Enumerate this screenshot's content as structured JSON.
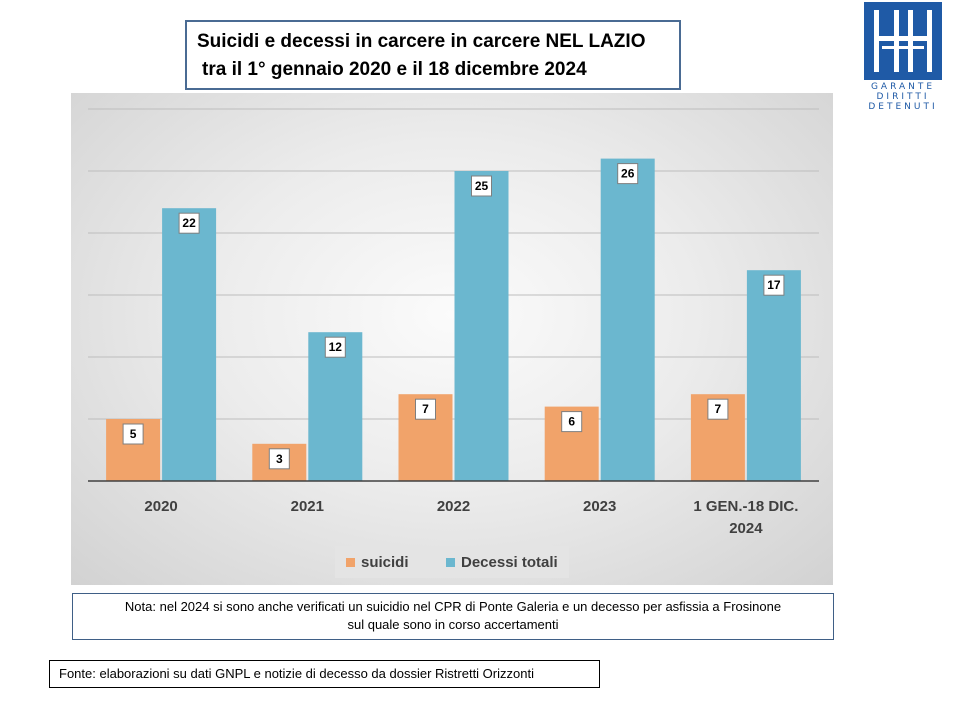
{
  "title": {
    "line1": "Suicidi e decessi in carcere in carcere NEL LAZIO",
    "line2": "tra il 1° gennaio 2020 e il 18 dicembre 2024"
  },
  "logo": {
    "lines": [
      "GARANTE",
      "DIRITTI",
      "DETENUTI"
    ],
    "color": "#1f5aa6"
  },
  "chart_data": {
    "type": "bar",
    "categories": [
      "2020",
      "2021",
      "2022",
      "2023",
      "1 GEN.-18 DIC. 2024"
    ],
    "category_lines": [
      [
        "2020"
      ],
      [
        "2021"
      ],
      [
        "2022"
      ],
      [
        "2023"
      ],
      [
        "1 GEN.-18 DIC.",
        "2024"
      ]
    ],
    "series": [
      {
        "name": "suicidi",
        "values": [
          5,
          3,
          7,
          6,
          7
        ],
        "color": "#f1a36a"
      },
      {
        "name": "Decessi totali",
        "values": [
          22,
          12,
          25,
          26,
          17
        ],
        "color": "#6bb7cf"
      }
    ],
    "ylim": [
      0,
      30
    ],
    "gridlines": true,
    "legend": "bottom-center",
    "data_labels": true
  },
  "note": {
    "line1": "Nota: nel 2024 si sono anche verificati un suicidio nel CPR di Ponte Galeria e un decesso per asfissia a Frosinone",
    "line2": "sul quale sono in corso accertamenti"
  },
  "source": "Fonte: elaborazioni su dati GNPL e notizie di decesso da dossier Ristretti Orizzonti"
}
